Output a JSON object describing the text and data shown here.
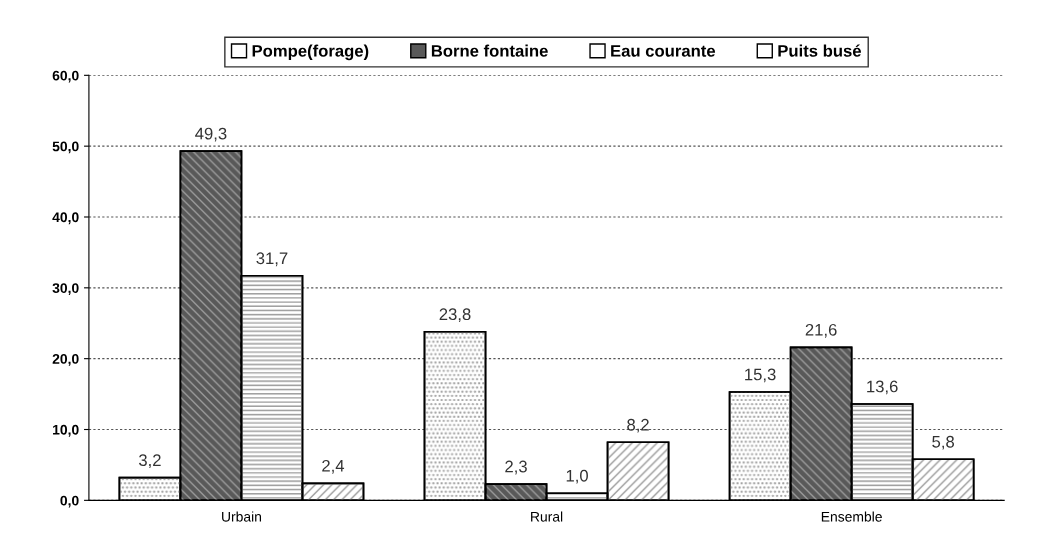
{
  "chart_data": {
    "type": "bar",
    "categories": [
      "Urbain",
      "Rural",
      "Ensemble"
    ],
    "series": [
      {
        "name": "Pompe(forage)",
        "color": "#ffffff",
        "values": [
          3.2,
          23.8,
          15.3
        ],
        "value_labels": [
          "3,2",
          "23,8",
          "15,3"
        ]
      },
      {
        "name": "Borne fontaine",
        "color": "#595959",
        "values": [
          49.3,
          2.3,
          21.6
        ],
        "value_labels": [
          "49,3",
          "2,3",
          "21,6"
        ]
      },
      {
        "name": "Eau courante",
        "color": "#ffffff",
        "values": [
          31.7,
          1.0,
          13.6
        ],
        "value_labels": [
          "31,7",
          "1,0",
          "13,6"
        ]
      },
      {
        "name": "Puits busé",
        "color": "#ffffff",
        "values": [
          2.4,
          8.2,
          5.8
        ],
        "value_labels": [
          "2,4",
          "8,2",
          "5,8"
        ]
      }
    ],
    "ylim": [
      0,
      60
    ],
    "yticks": [
      {
        "value": 0,
        "label": "0,0"
      },
      {
        "value": 10,
        "label": "10,0"
      },
      {
        "value": 20,
        "label": "20,0"
      },
      {
        "value": 30,
        "label": "30,0"
      },
      {
        "value": 40,
        "label": "40,0"
      },
      {
        "value": 50,
        "label": "50,0"
      },
      {
        "value": 60,
        "label": "60,0"
      }
    ],
    "grid": "y",
    "legend": "top"
  }
}
